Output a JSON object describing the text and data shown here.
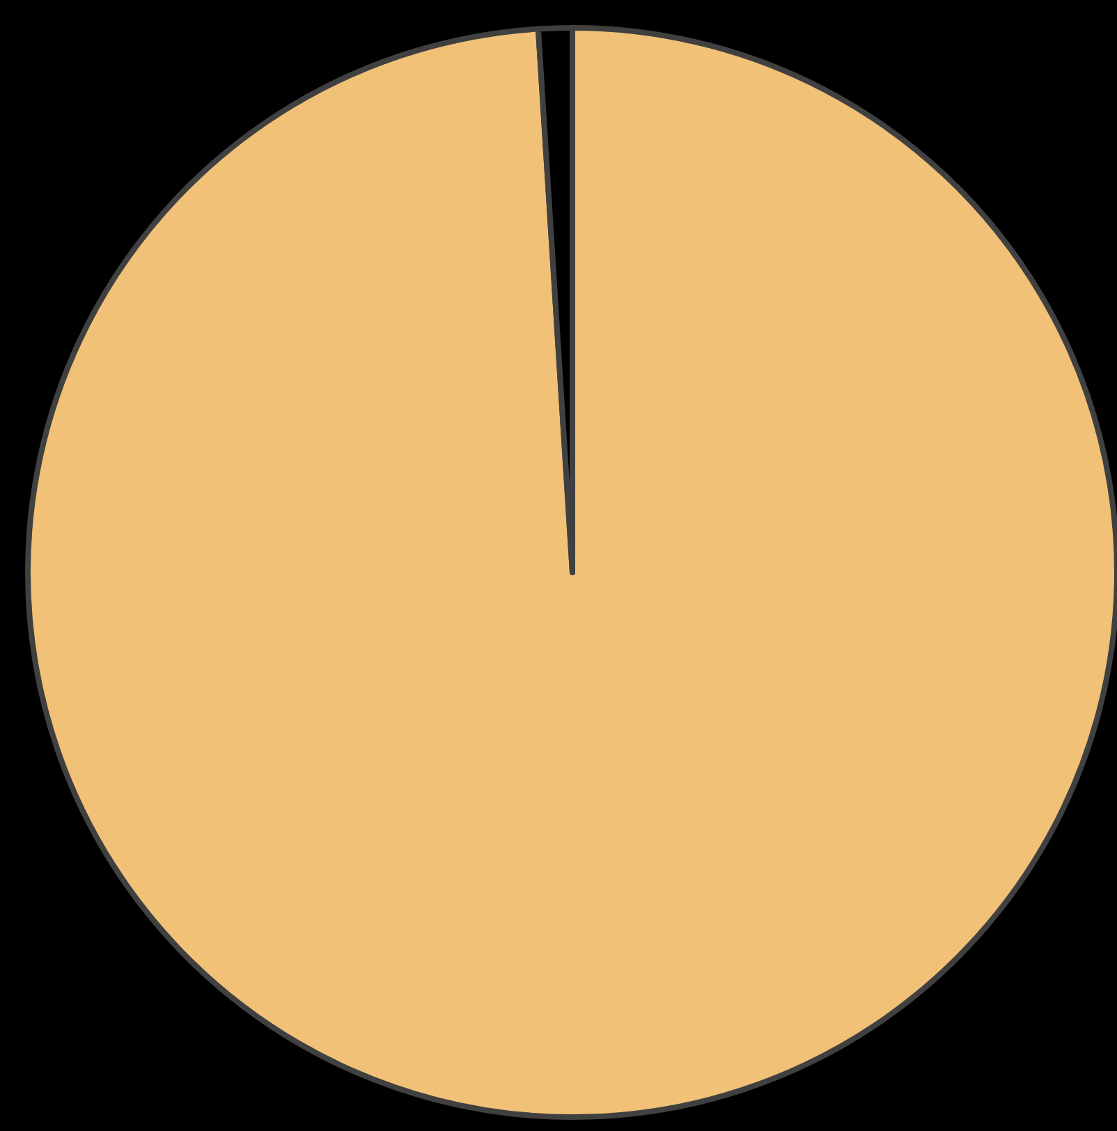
{
  "chart_data": {
    "type": "pie",
    "categories": [
      null,
      null
    ],
    "values": [
      99,
      1
    ],
    "colors": [
      "#f2c178",
      "#000000"
    ]
  }
}
